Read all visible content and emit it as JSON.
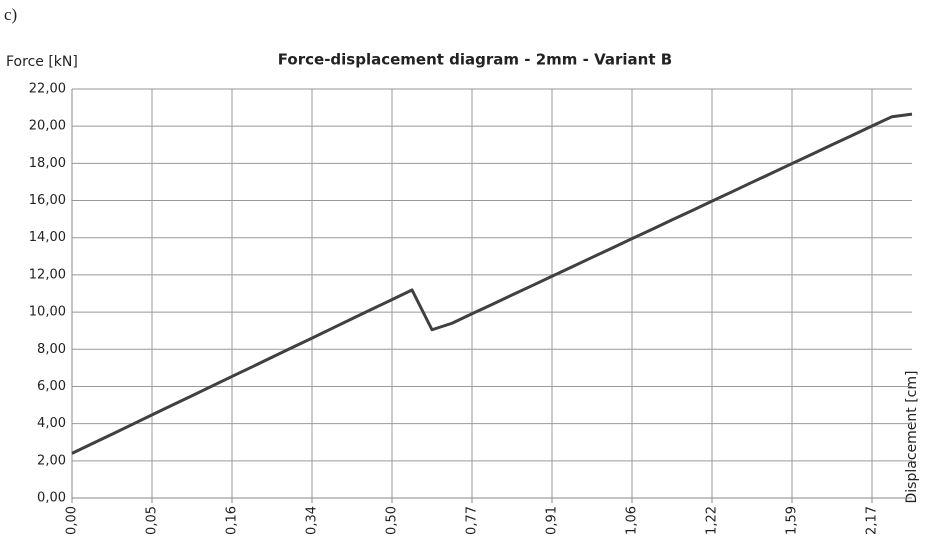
{
  "chart_data": {
    "type": "line",
    "caption": "c)",
    "title": "Force-displacement  diagram  - 2mm - Variant  B",
    "y_label": "Force [kN]",
    "x_label": "Displacement [cm]",
    "categories": [
      "0,00",
      null,
      null,
      null,
      "0,05",
      null,
      null,
      null,
      "0,16",
      null,
      null,
      null,
      "0,34",
      null,
      null,
      null,
      "0,50",
      null,
      null,
      null,
      "0,77",
      null,
      null,
      null,
      "0,91",
      null,
      null,
      null,
      "1,06",
      null,
      null,
      null,
      "1,22",
      null,
      null,
      null,
      "1,59",
      null,
      null,
      null,
      "2,17",
      null,
      null
    ],
    "series": [
      {
        "name": "Force",
        "color": "#404040",
        "values": [
          2.4,
          2.92,
          3.43,
          3.95,
          4.47,
          4.99,
          5.5,
          6.02,
          6.54,
          7.05,
          7.57,
          8.09,
          8.6,
          9.12,
          9.64,
          10.16,
          10.67,
          11.19,
          9.05,
          9.4,
          9.91,
          10.41,
          10.92,
          11.42,
          11.93,
          12.43,
          12.94,
          13.44,
          13.95,
          14.45,
          14.96,
          15.46,
          15.97,
          16.47,
          16.98,
          17.48,
          17.99,
          18.49,
          19.0,
          19.5,
          20.01,
          20.51,
          20.65
        ]
      }
    ],
    "ylim": [
      0,
      22
    ],
    "yticks": [
      {
        "value": 0,
        "label": "0,00"
      },
      {
        "value": 2,
        "label": "2,00"
      },
      {
        "value": 4,
        "label": "4,00"
      },
      {
        "value": 6,
        "label": "6,00"
      },
      {
        "value": 8,
        "label": "8,00"
      },
      {
        "value": 10,
        "label": "10,00"
      },
      {
        "value": 12,
        "label": "12,00"
      },
      {
        "value": 14,
        "label": "14,00"
      },
      {
        "value": 16,
        "label": "16,00"
      },
      {
        "value": 18,
        "label": "18,00"
      },
      {
        "value": 20,
        "label": "20,00"
      },
      {
        "value": 22,
        "label": "22,00"
      }
    ],
    "grid": true
  }
}
